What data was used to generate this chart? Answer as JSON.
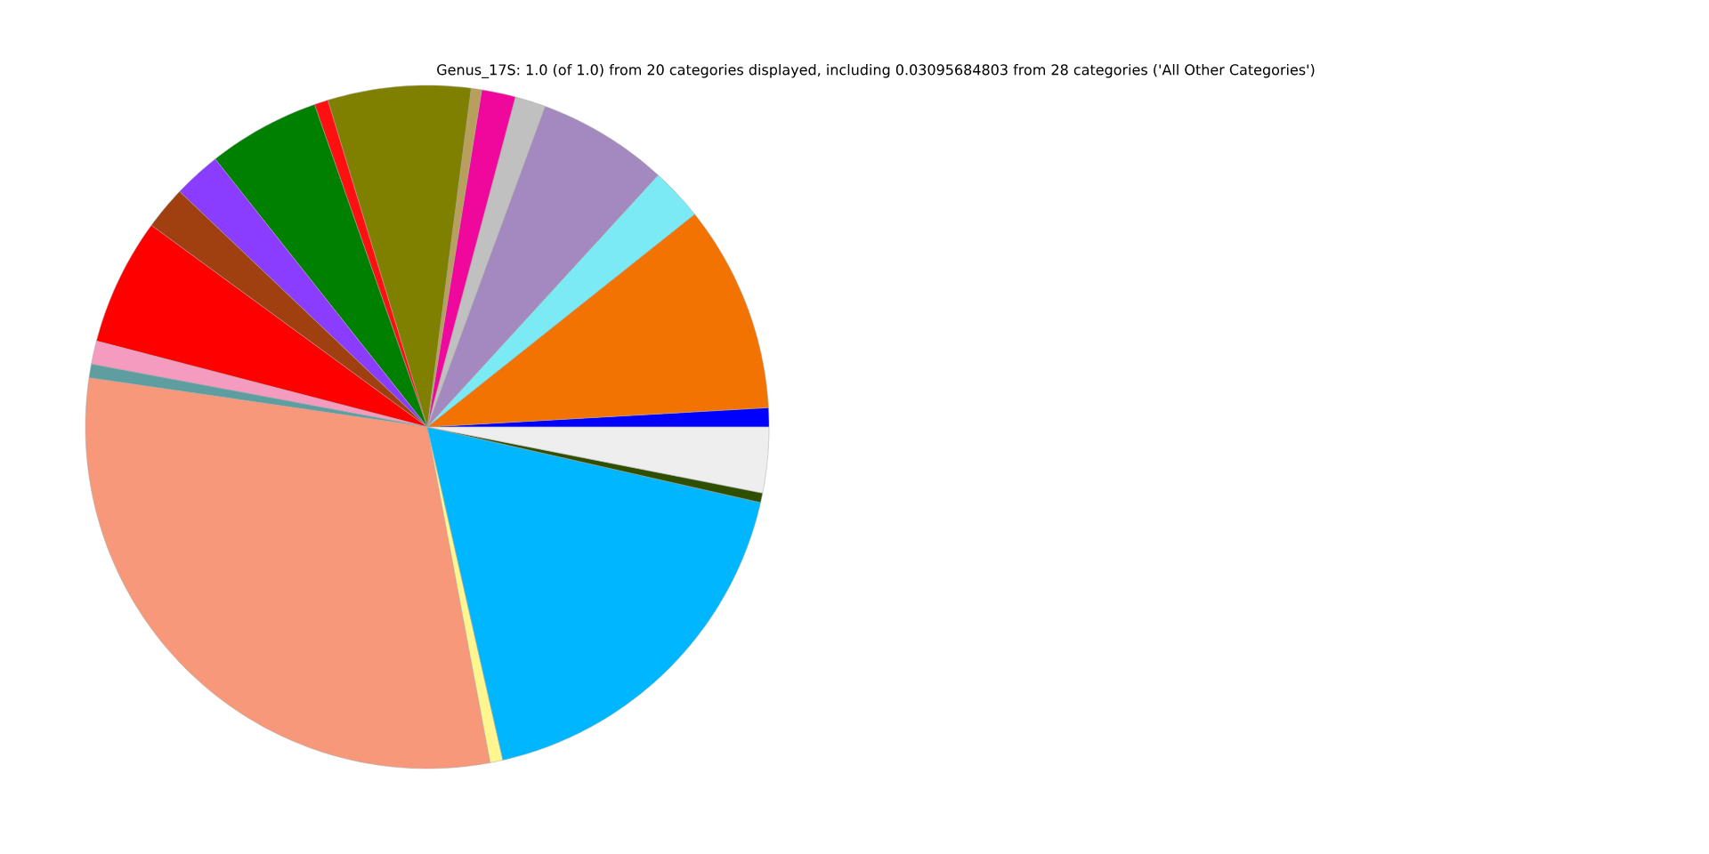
{
  "chart_data": {
    "type": "pie",
    "title": "Genus_17S: 1.0 (of 1.0) from 20 categories displayed, including 0.03095684803 from 28 categories ('All Other Categories')",
    "categories": [
      null,
      null,
      null,
      null,
      null,
      null,
      null,
      null,
      null,
      null,
      null,
      null,
      null,
      null,
      null,
      null,
      null,
      null,
      null,
      null
    ],
    "values": [
      0.9,
      9.8,
      2.5,
      6.2,
      1.45,
      1.6,
      0.5,
      6.75,
      0.65,
      5.3,
      2.25,
      2.05,
      6.0,
      1.1,
      0.65,
      30.25,
      0.6,
      17.9,
      0.45,
      3.1
    ],
    "colors": [
      "#0000ff",
      "#f37302",
      "#7beaf4",
      "#a488c0",
      "#c0c0c0",
      "#f0079b",
      "#b89f5c",
      "#808000",
      "#ff1010",
      "#008000",
      "#8b3dff",
      "#a04010",
      "#ff0000",
      "#f59bc0",
      "#5f9ea0",
      "#f8987a",
      "#fff68f",
      "#00b7ff",
      "#2f4f00",
      "#eeeeee"
    ]
  }
}
